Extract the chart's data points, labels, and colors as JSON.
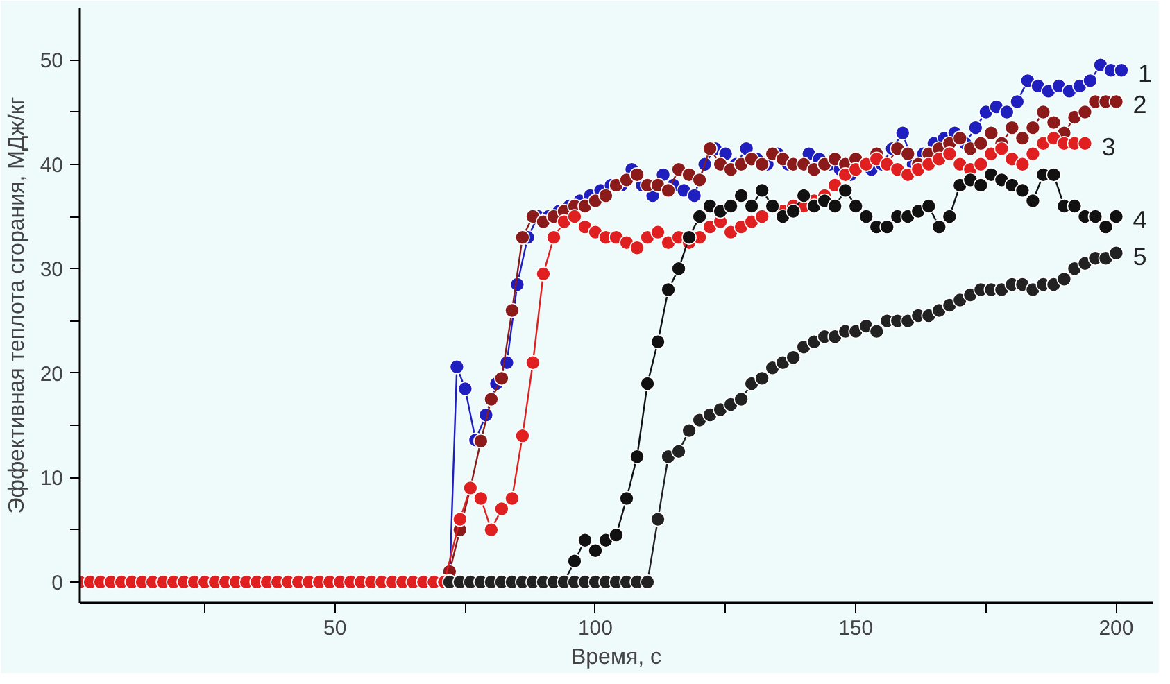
{
  "chart_data": {
    "type": "line",
    "xlabel": "Время, с",
    "ylabel": "Эффективная теплота сгорания, МДж/кг",
    "xlim": [
      1,
      207
    ],
    "ylim": [
      -2,
      55
    ],
    "xticks": [
      {
        "value": 25,
        "label": null
      },
      50,
      {
        "value": 75,
        "label": null
      },
      100,
      {
        "value": 125,
        "label": null
      },
      150,
      {
        "value": 175,
        "label": null
      },
      200
    ],
    "yticks": [
      0,
      {
        "value": 5,
        "label": null
      },
      10,
      {
        "value": 15,
        "label": null
      },
      20,
      {
        "value": 25,
        "label": null
      },
      30,
      {
        "value": 35,
        "label": null
      },
      40,
      {
        "value": 45,
        "label": null
      },
      50
    ],
    "grid": false,
    "legend": false,
    "marker": "circle",
    "line_style": "solid",
    "series": [
      {
        "name": "1",
        "color": "#1f1fbf",
        "x": [
          72,
          73.4,
          75,
          77,
          79,
          81,
          83,
          85,
          87,
          89,
          91,
          93,
          95,
          97,
          99,
          101,
          103,
          105,
          107,
          109,
          111,
          113,
          115,
          117,
          119,
          121,
          123,
          125,
          127,
          129,
          131,
          133,
          135,
          137,
          139,
          141,
          143,
          145,
          147,
          149,
          151,
          153,
          155,
          157,
          159,
          161,
          163,
          165,
          167,
          169,
          171,
          173,
          175,
          177,
          179,
          181,
          183,
          185,
          187,
          189,
          191,
          193,
          195,
          197,
          199,
          201
        ],
        "values": [
          0,
          20.6,
          18.5,
          13.6,
          16,
          19,
          21,
          28.5,
          33,
          35,
          35,
          35.5,
          36,
          36.5,
          37,
          37.5,
          38,
          38,
          39.5,
          38,
          37,
          39,
          38,
          37.5,
          37,
          40,
          41.5,
          41,
          40,
          41.5,
          40.5,
          40,
          41,
          40,
          null,
          41,
          40.5,
          40,
          39.5,
          39,
          null,
          39.5,
          40,
          41.5,
          43,
          40,
          41,
          42,
          42.5,
          43,
          42,
          43.5,
          45,
          45.5,
          45,
          46,
          48,
          47.5,
          47,
          47.5,
          47,
          47.5,
          48,
          49.5,
          49,
          49
        ]
      },
      {
        "name": "2",
        "color": "#8b1a1a",
        "x": [
          72,
          74,
          76,
          78,
          80,
          82,
          84,
          86,
          88,
          90,
          92,
          94,
          96,
          98,
          100,
          102,
          104,
          106,
          108,
          110,
          112,
          114,
          116,
          118,
          120,
          122,
          124,
          126,
          128,
          130,
          132,
          134,
          136,
          138,
          140,
          142,
          144,
          146,
          148,
          150,
          152,
          154,
          156,
          158,
          160,
          162,
          164,
          166,
          168,
          170,
          172,
          174,
          176,
          178,
          180,
          182,
          184,
          186,
          188,
          190,
          192,
          194,
          196,
          198,
          200
        ],
        "values": [
          1,
          5,
          9,
          13.5,
          17.5,
          19.5,
          26,
          33,
          35,
          34.5,
          35,
          35.5,
          36,
          36,
          36.5,
          37,
          38,
          38.5,
          39,
          38,
          38,
          37.5,
          39.5,
          39,
          38.5,
          41.5,
          40,
          39.5,
          40,
          40.5,
          40,
          41,
          40.5,
          40,
          40,
          39.5,
          40,
          40.5,
          40,
          40.5,
          40,
          41,
          40,
          41.5,
          41,
          40,
          41,
          41.5,
          42,
          42.5,
          41.5,
          42,
          43,
          42,
          43.5,
          42.5,
          43.5,
          45,
          44,
          43,
          44.5,
          45,
          46,
          46,
          46
        ]
      },
      {
        "name": "3",
        "color": "#e02020",
        "x": [
          1,
          3,
          5,
          7,
          9,
          11,
          13,
          15,
          17,
          19,
          21,
          23,
          25,
          27,
          29,
          31,
          33,
          35,
          37,
          39,
          41,
          43,
          45,
          47,
          49,
          51,
          53,
          55,
          57,
          59,
          61,
          63,
          65,
          67,
          69,
          71,
          74,
          76,
          78,
          80,
          82,
          84,
          86,
          88,
          90,
          92,
          94,
          96,
          98,
          100,
          102,
          104,
          106,
          108,
          110,
          112,
          114,
          116,
          118,
          120,
          122,
          124,
          126,
          128,
          130,
          132,
          134,
          136,
          138,
          140,
          142,
          144,
          146,
          148,
          150,
          152,
          154,
          156,
          158,
          160,
          162,
          164,
          166,
          168,
          170,
          172,
          174,
          176,
          178,
          180,
          182,
          184,
          186,
          188,
          190,
          192,
          194
        ],
        "values": [
          0,
          0,
          0,
          0,
          0,
          0,
          0,
          0,
          0,
          0,
          0,
          0,
          0,
          0,
          0,
          0,
          0,
          0,
          0,
          0,
          0,
          0,
          0,
          0,
          0,
          0,
          0,
          0,
          0,
          0,
          0,
          0,
          0,
          0,
          0,
          0,
          6,
          9,
          8,
          5,
          7,
          8,
          14,
          21,
          29.5,
          33,
          34.5,
          35,
          34,
          33.5,
          33,
          33,
          32.5,
          32,
          33,
          33.5,
          32.5,
          33,
          32.5,
          33,
          34,
          34.5,
          33.5,
          34,
          34.5,
          35,
          36,
          35.5,
          36,
          36,
          36.5,
          37,
          38,
          39,
          39.5,
          40,
          40.5,
          40,
          39.5,
          39,
          39.5,
          40,
          40.5,
          41,
          40,
          39.5,
          40,
          41,
          41.5,
          40.5,
          40,
          41,
          42,
          42.5,
          42,
          42,
          42
        ]
      },
      {
        "name": "4",
        "color": "#111111",
        "x": [
          72,
          74,
          76,
          78,
          80,
          82,
          84,
          86,
          88,
          90,
          92,
          94,
          96,
          98,
          100,
          102,
          104,
          106,
          108,
          110,
          112,
          114,
          116,
          118,
          120,
          122,
          124,
          126,
          128,
          130,
          132,
          134,
          136,
          138,
          140,
          142,
          144,
          146,
          148,
          150,
          152,
          154,
          156,
          158,
          160,
          162,
          164,
          166,
          168,
          170,
          172,
          174,
          176,
          178,
          180,
          182,
          184,
          186,
          188,
          190,
          192,
          194,
          196,
          198,
          200
        ],
        "values": [
          0,
          0,
          0,
          0,
          0,
          0,
          0,
          0,
          0,
          0,
          0,
          0,
          2,
          4,
          3,
          4,
          4.5,
          8,
          12,
          19,
          23,
          28,
          30,
          33,
          35,
          36,
          35.5,
          36,
          37,
          36,
          37.5,
          36,
          35,
          35.5,
          37,
          36,
          36.5,
          36,
          37.5,
          36,
          35,
          34,
          34,
          35,
          35,
          35.5,
          36,
          34,
          35,
          38,
          38.5,
          38,
          39,
          38.5,
          38,
          37.5,
          36.5,
          39,
          39,
          36,
          36,
          35,
          35,
          34,
          35
        ]
      },
      {
        "name": "5",
        "color": "#222222",
        "x": [
          72,
          74,
          76,
          78,
          80,
          82,
          84,
          86,
          88,
          90,
          92,
          94,
          96,
          98,
          100,
          102,
          104,
          106,
          108,
          110,
          112,
          114,
          116,
          118,
          120,
          122,
          124,
          126,
          128,
          130,
          132,
          134,
          136,
          138,
          140,
          142,
          144,
          146,
          148,
          150,
          152,
          154,
          156,
          158,
          160,
          162,
          164,
          166,
          168,
          170,
          172,
          174,
          176,
          178,
          180,
          182,
          184,
          186,
          188,
          190,
          192,
          194,
          196,
          198,
          200
        ],
        "values": [
          0,
          0,
          0,
          0,
          0,
          0,
          0,
          0,
          0,
          0,
          0,
          0,
          0,
          0,
          0,
          0,
          0,
          0,
          0,
          0,
          6,
          12,
          12.5,
          14.5,
          15.5,
          16,
          16.5,
          17,
          17.5,
          19,
          19.5,
          20.5,
          21,
          21.5,
          22.5,
          23,
          23.5,
          23.5,
          24,
          24,
          24.5,
          24,
          25,
          25,
          25,
          25.5,
          25.5,
          26,
          26.5,
          27,
          27.5,
          28,
          28,
          28,
          28.5,
          28.5,
          28,
          28.5,
          28.5,
          29,
          30,
          30.5,
          31,
          31,
          31.5
        ]
      }
    ]
  }
}
